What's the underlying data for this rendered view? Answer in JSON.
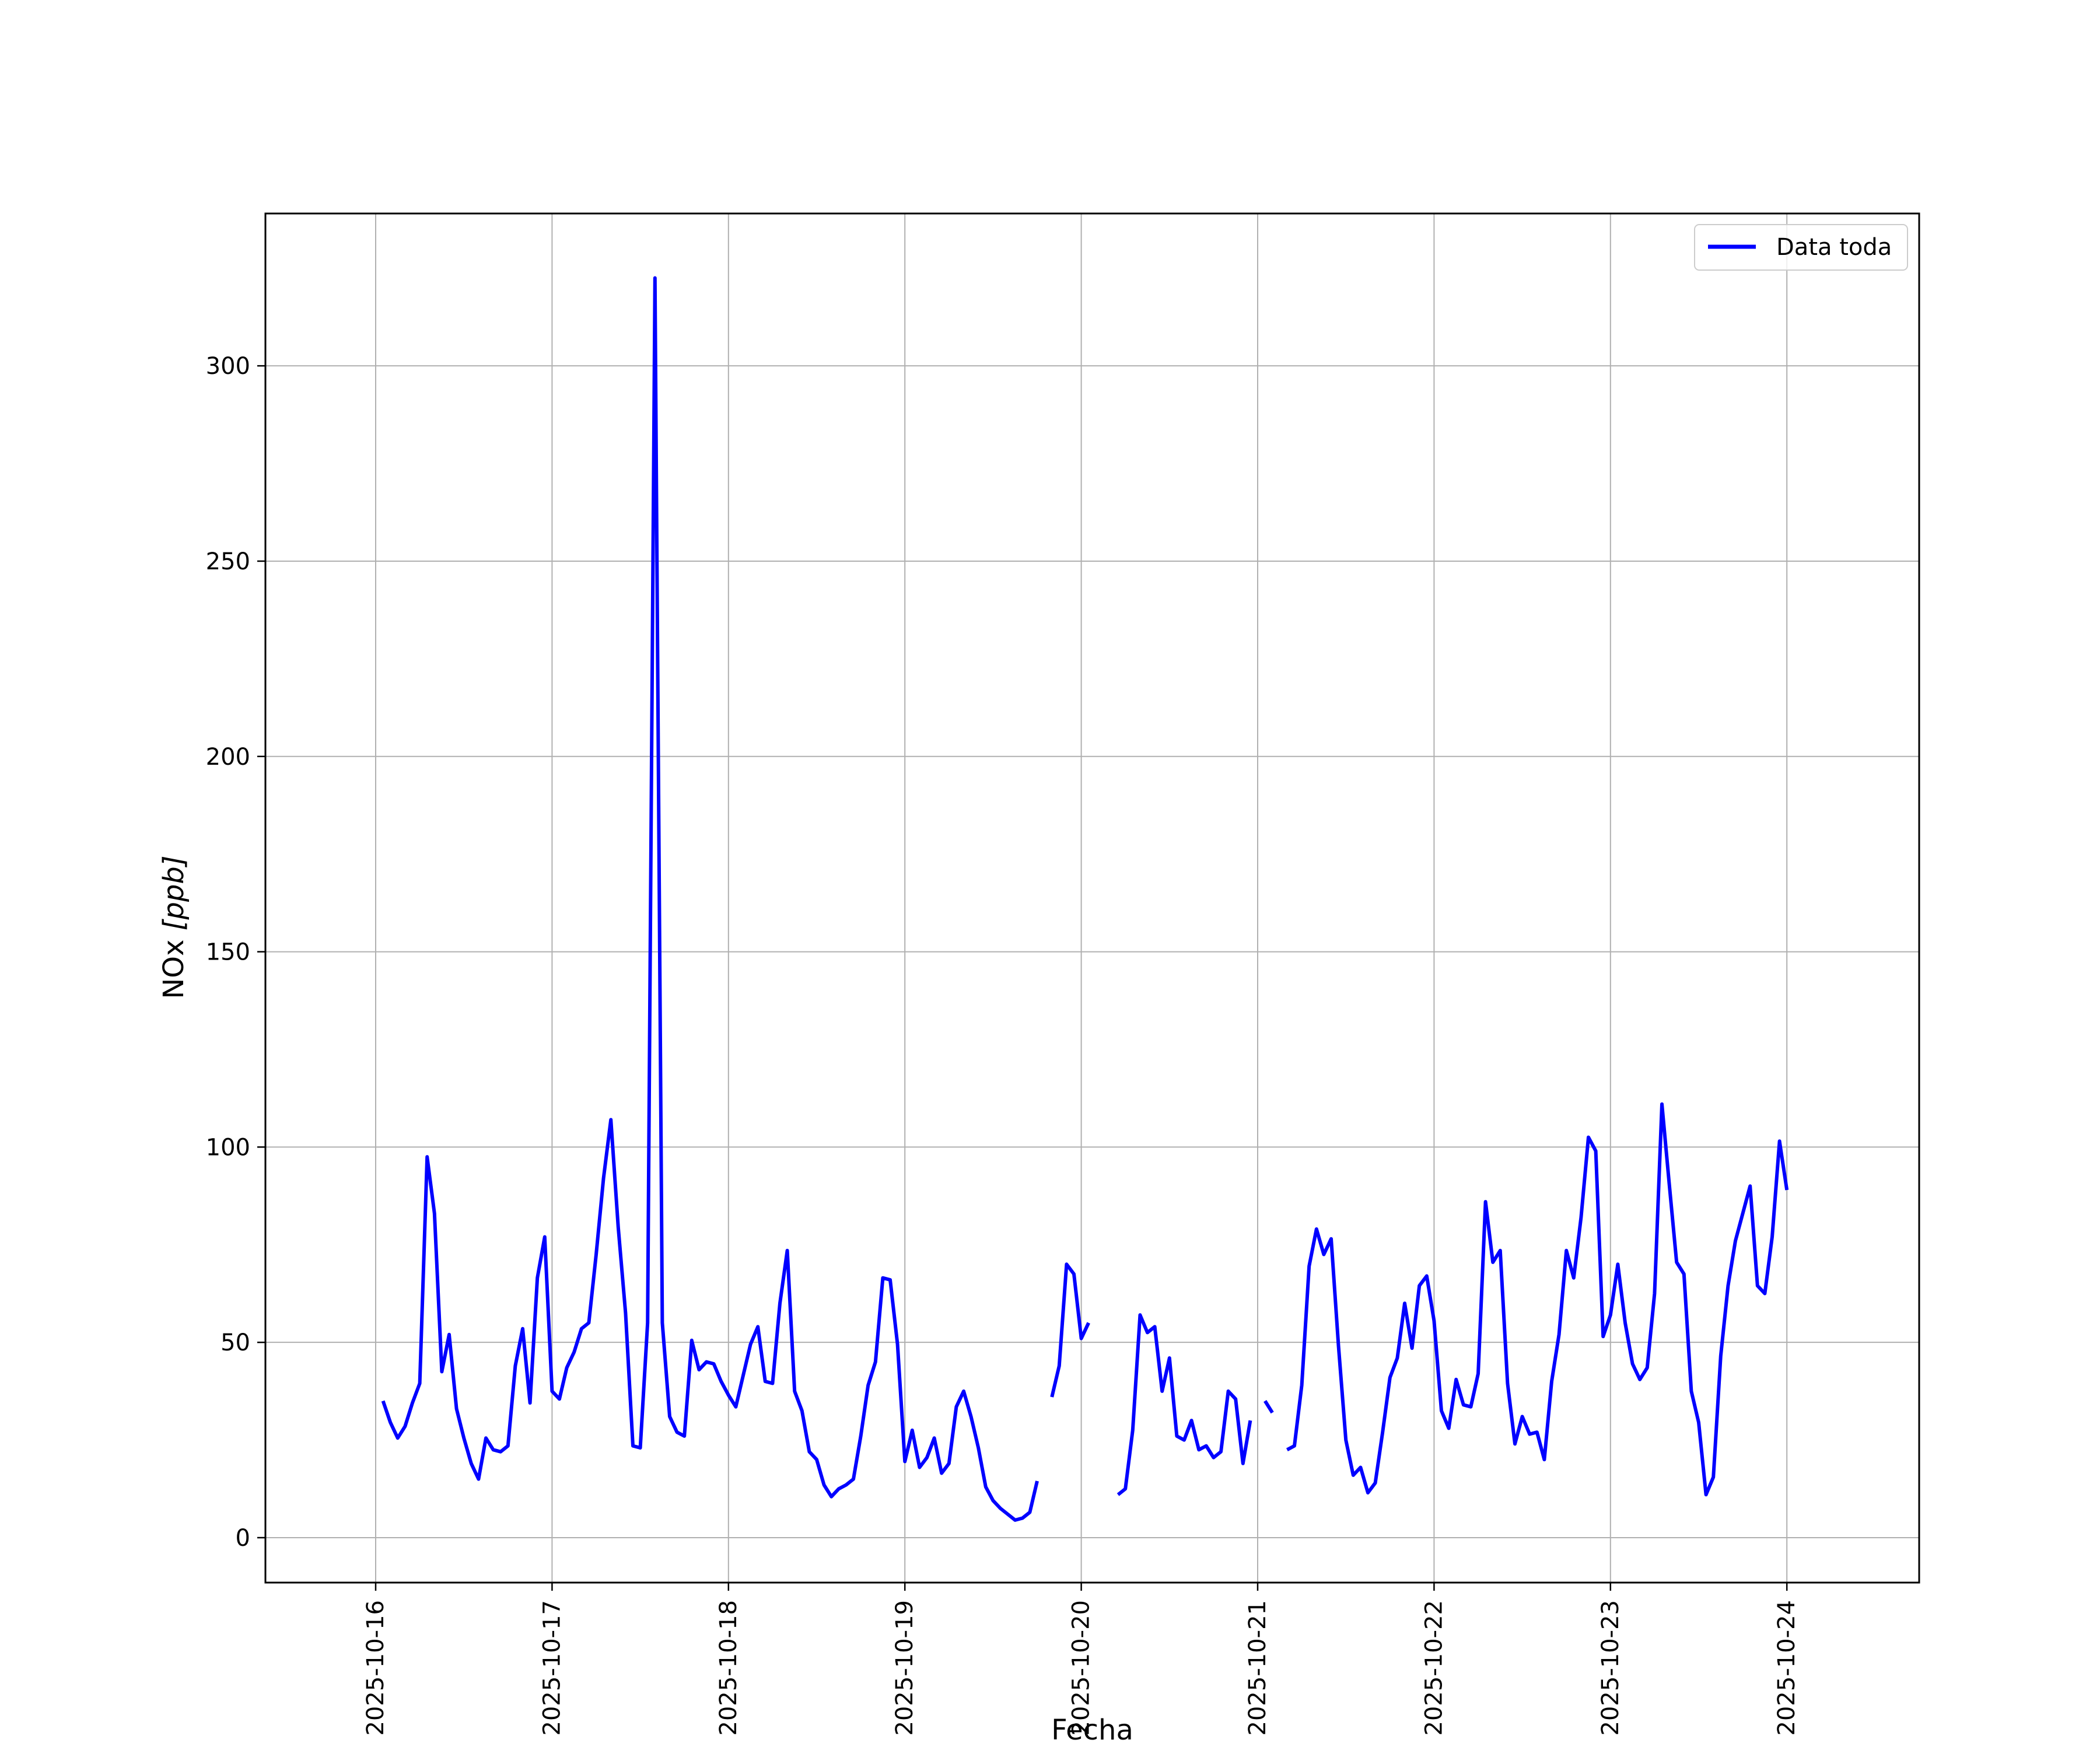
{
  "chart_data": {
    "type": "line",
    "xlabel": "Fecha",
    "ylabel_main": "NOx ",
    "ylabel_unit": "[ppb]",
    "xlim": [
      "2025-10-15 09:00",
      "2025-10-24 18:00"
    ],
    "ylim": [
      -11.5,
      339
    ],
    "grid": true,
    "legend_position": "top-right",
    "x_ticks": [
      "2025-10-16",
      "2025-10-17",
      "2025-10-18",
      "2025-10-19",
      "2025-10-20",
      "2025-10-21",
      "2025-10-22",
      "2025-10-23",
      "2025-10-24"
    ],
    "y_ticks": [
      0,
      50,
      100,
      150,
      200,
      250,
      300
    ],
    "series": [
      {
        "name": "Data toda",
        "color": "#0000ff",
        "points": [
          [
            "2025-10-16 01:00",
            35
          ],
          [
            "2025-10-16 02:00",
            29.5
          ],
          [
            "2025-10-16 03:00",
            25.5
          ],
          [
            "2025-10-16 04:00",
            28.5
          ],
          [
            "2025-10-16 05:00",
            34.5
          ],
          [
            "2025-10-16 06:00",
            39.5
          ],
          [
            "2025-10-16 07:00",
            97.5
          ],
          [
            "2025-10-16 08:00",
            83
          ],
          [
            "2025-10-16 09:00",
            42.5
          ],
          [
            "2025-10-16 10:00",
            52
          ],
          [
            "2025-10-16 11:00",
            33
          ],
          [
            "2025-10-16 12:00",
            25.5
          ],
          [
            "2025-10-16 13:00",
            19
          ],
          [
            "2025-10-16 14:00",
            15
          ],
          [
            "2025-10-16 15:00",
            25.5
          ],
          [
            "2025-10-16 16:00",
            22.5
          ],
          [
            "2025-10-16 17:00",
            22
          ],
          [
            "2025-10-16 18:00",
            23.5
          ],
          [
            "2025-10-16 19:00",
            44
          ],
          [
            "2025-10-16 20:00",
            53.5
          ],
          [
            "2025-10-16 21:00",
            34.5
          ],
          [
            "2025-10-16 22:00",
            66.5
          ],
          [
            "2025-10-16 23:00",
            77
          ],
          [
            "2025-10-17 00:00",
            37.5
          ],
          [
            "2025-10-17 01:00",
            35.5
          ],
          [
            "2025-10-17 02:00",
            43.5
          ],
          [
            "2025-10-17 03:00",
            47.5
          ],
          [
            "2025-10-17 04:00",
            53.5
          ],
          [
            "2025-10-17 05:00",
            55
          ],
          [
            "2025-10-17 06:00",
            72.5
          ],
          [
            "2025-10-17 07:00",
            92
          ],
          [
            "2025-10-17 08:00",
            107
          ],
          [
            "2025-10-17 09:00",
            79.5
          ],
          [
            "2025-10-17 10:00",
            57.5
          ],
          [
            "2025-10-17 11:00",
            23.5
          ],
          [
            "2025-10-17 12:00",
            23
          ],
          [
            "2025-10-17 13:00",
            55
          ],
          [
            "2025-10-17 14:00",
            322.5
          ],
          [
            "2025-10-17 15:00",
            55
          ],
          [
            "2025-10-17 16:00",
            31
          ],
          [
            "2025-10-17 17:00",
            27
          ],
          [
            "2025-10-17 18:00",
            26
          ],
          [
            "2025-10-17 19:00",
            50.5
          ],
          [
            "2025-10-17 20:00",
            43
          ],
          [
            "2025-10-17 21:00",
            45
          ],
          [
            "2025-10-17 22:00",
            44.5
          ],
          [
            "2025-10-17 23:00",
            40
          ],
          [
            "2025-10-18 00:00",
            36.5
          ],
          [
            "2025-10-18 01:00",
            33.5
          ],
          [
            "2025-10-18 02:00",
            41.5
          ],
          [
            "2025-10-18 03:00",
            49.5
          ],
          [
            "2025-10-18 04:00",
            54
          ],
          [
            "2025-10-18 05:00",
            40
          ],
          [
            "2025-10-18 06:00",
            39.5
          ],
          [
            "2025-10-18 07:00",
            60
          ],
          [
            "2025-10-18 08:00",
            73.5
          ],
          [
            "2025-10-18 09:00",
            37.5
          ],
          [
            "2025-10-18 10:00",
            32.5
          ],
          [
            "2025-10-18 11:00",
            22
          ],
          [
            "2025-10-18 12:00",
            20
          ],
          [
            "2025-10-18 13:00",
            13.5
          ],
          [
            "2025-10-18 14:00",
            10.5
          ],
          [
            "2025-10-18 15:00",
            12.5
          ],
          [
            "2025-10-18 16:00",
            13.5
          ],
          [
            "2025-10-18 17:00",
            15
          ],
          [
            "2025-10-18 18:00",
            26
          ],
          [
            "2025-10-18 19:00",
            39
          ],
          [
            "2025-10-18 20:00",
            45
          ],
          [
            "2025-10-18 21:00",
            66.5
          ],
          [
            "2025-10-18 22:00",
            66
          ],
          [
            "2025-10-18 23:00",
            49.5
          ],
          [
            "2025-10-19 00:00",
            19.5
          ],
          [
            "2025-10-19 01:00",
            27.5
          ],
          [
            "2025-10-19 02:00",
            18
          ],
          [
            "2025-10-19 03:00",
            20.5
          ],
          [
            "2025-10-19 04:00",
            25.5
          ],
          [
            "2025-10-19 05:00",
            16.5
          ],
          [
            "2025-10-19 06:00",
            19
          ],
          [
            "2025-10-19 07:00",
            33.5
          ],
          [
            "2025-10-19 08:00",
            37.5
          ],
          [
            "2025-10-19 09:00",
            31
          ],
          [
            "2025-10-19 10:00",
            23
          ],
          [
            "2025-10-19 11:00",
            13
          ],
          [
            "2025-10-19 12:00",
            9.5
          ],
          [
            "2025-10-19 13:00",
            7.5
          ],
          [
            "2025-10-19 14:00",
            6
          ],
          [
            "2025-10-19 15:00",
            4.5
          ],
          [
            "2025-10-19 16:00",
            5
          ],
          [
            "2025-10-19 17:00",
            6.5
          ],
          [
            "2025-10-19 18:00",
            14.5
          ],
          [
            "2025-10-19 19:00",
            null
          ],
          [
            "2025-10-19 20:00",
            36
          ],
          [
            "2025-10-19 21:00",
            44
          ],
          [
            "2025-10-19 22:00",
            70
          ],
          [
            "2025-10-19 23:00",
            67.5
          ],
          [
            "2025-10-20 00:00",
            51
          ],
          [
            "2025-10-20 01:00",
            55
          ],
          [
            "2025-10-20 02:00",
            null
          ],
          [
            "2025-10-20 03:00",
            null
          ],
          [
            "2025-10-20 04:00",
            null
          ],
          [
            "2025-10-20 05:00",
            11
          ],
          [
            "2025-10-20 06:00",
            12.5
          ],
          [
            "2025-10-20 07:00",
            27.5
          ],
          [
            "2025-10-20 08:00",
            57
          ],
          [
            "2025-10-20 09:00",
            52.5
          ],
          [
            "2025-10-20 10:00",
            54
          ],
          [
            "2025-10-20 11:00",
            37.5
          ],
          [
            "2025-10-20 12:00",
            46
          ],
          [
            "2025-10-20 13:00",
            26
          ],
          [
            "2025-10-20 14:00",
            25
          ],
          [
            "2025-10-20 15:00",
            30
          ],
          [
            "2025-10-20 16:00",
            22.5
          ],
          [
            "2025-10-20 17:00",
            23.5
          ],
          [
            "2025-10-20 18:00",
            20.5
          ],
          [
            "2025-10-20 19:00",
            22
          ],
          [
            "2025-10-20 20:00",
            37.5
          ],
          [
            "2025-10-20 21:00",
            35.5
          ],
          [
            "2025-10-20 22:00",
            19
          ],
          [
            "2025-10-20 23:00",
            30
          ],
          [
            "2025-10-21 00:00",
            null
          ],
          [
            "2025-10-21 01:00",
            35
          ],
          [
            "2025-10-21 02:00",
            32
          ],
          [
            "2025-10-21 03:00",
            null
          ],
          [
            "2025-10-21 04:00",
            22.5
          ],
          [
            "2025-10-21 05:00",
            23.5
          ],
          [
            "2025-10-21 06:00",
            39
          ],
          [
            "2025-10-21 07:00",
            69.5
          ],
          [
            "2025-10-21 08:00",
            79
          ],
          [
            "2025-10-21 09:00",
            72.5
          ],
          [
            "2025-10-21 10:00",
            76.5
          ],
          [
            "2025-10-21 11:00",
            49
          ],
          [
            "2025-10-21 12:00",
            25
          ],
          [
            "2025-10-21 13:00",
            16
          ],
          [
            "2025-10-21 14:00",
            18
          ],
          [
            "2025-10-21 15:00",
            11.5
          ],
          [
            "2025-10-21 16:00",
            14
          ],
          [
            "2025-10-21 17:00",
            27
          ],
          [
            "2025-10-21 18:00",
            41
          ],
          [
            "2025-10-21 19:00",
            46
          ],
          [
            "2025-10-21 20:00",
            60
          ],
          [
            "2025-10-21 21:00",
            48.5
          ],
          [
            "2025-10-21 22:00",
            64.5
          ],
          [
            "2025-10-21 23:00",
            67
          ],
          [
            "2025-10-22 00:00",
            55.5
          ],
          [
            "2025-10-22 01:00",
            32.5
          ],
          [
            "2025-10-22 02:00",
            28
          ],
          [
            "2025-10-22 03:00",
            40.5
          ],
          [
            "2025-10-22 04:00",
            34
          ],
          [
            "2025-10-22 05:00",
            33.5
          ],
          [
            "2025-10-22 06:00",
            42
          ],
          [
            "2025-10-22 07:00",
            86
          ],
          [
            "2025-10-22 08:00",
            70.5
          ],
          [
            "2025-10-22 09:00",
            73.5
          ],
          [
            "2025-10-22 10:00",
            39.5
          ],
          [
            "2025-10-22 11:00",
            24
          ],
          [
            "2025-10-22 12:00",
            31
          ],
          [
            "2025-10-22 13:00",
            26.5
          ],
          [
            "2025-10-22 14:00",
            27
          ],
          [
            "2025-10-22 15:00",
            20
          ],
          [
            "2025-10-22 16:00",
            40
          ],
          [
            "2025-10-22 17:00",
            52
          ],
          [
            "2025-10-22 18:00",
            73.5
          ],
          [
            "2025-10-22 19:00",
            66.5
          ],
          [
            "2025-10-22 20:00",
            82
          ],
          [
            "2025-10-22 21:00",
            102.5
          ],
          [
            "2025-10-22 22:00",
            99
          ],
          [
            "2025-10-22 23:00",
            51.5
          ],
          [
            "2025-10-23 00:00",
            57
          ],
          [
            "2025-10-23 01:00",
            70
          ],
          [
            "2025-10-23 02:00",
            55
          ],
          [
            "2025-10-23 03:00",
            44.5
          ],
          [
            "2025-10-23 04:00",
            40.5
          ],
          [
            "2025-10-23 05:00",
            43.5
          ],
          [
            "2025-10-23 06:00",
            62.5
          ],
          [
            "2025-10-23 07:00",
            111
          ],
          [
            "2025-10-23 08:00",
            90.5
          ],
          [
            "2025-10-23 09:00",
            70.5
          ],
          [
            "2025-10-23 10:00",
            67.5
          ],
          [
            "2025-10-23 11:00",
            37.5
          ],
          [
            "2025-10-23 12:00",
            29.5
          ],
          [
            "2025-10-23 13:00",
            11
          ],
          [
            "2025-10-23 14:00",
            15.5
          ],
          [
            "2025-10-23 15:00",
            46.5
          ],
          [
            "2025-10-23 16:00",
            64.5
          ],
          [
            "2025-10-23 17:00",
            76
          ],
          [
            "2025-10-23 18:00",
            83
          ],
          [
            "2025-10-23 19:00",
            90
          ],
          [
            "2025-10-23 20:00",
            64.5
          ],
          [
            "2025-10-23 21:00",
            62.5
          ],
          [
            "2025-10-23 22:00",
            77
          ],
          [
            "2025-10-23 23:00",
            101.5
          ],
          [
            "2025-10-24 00:00",
            89
          ]
        ]
      }
    ]
  }
}
